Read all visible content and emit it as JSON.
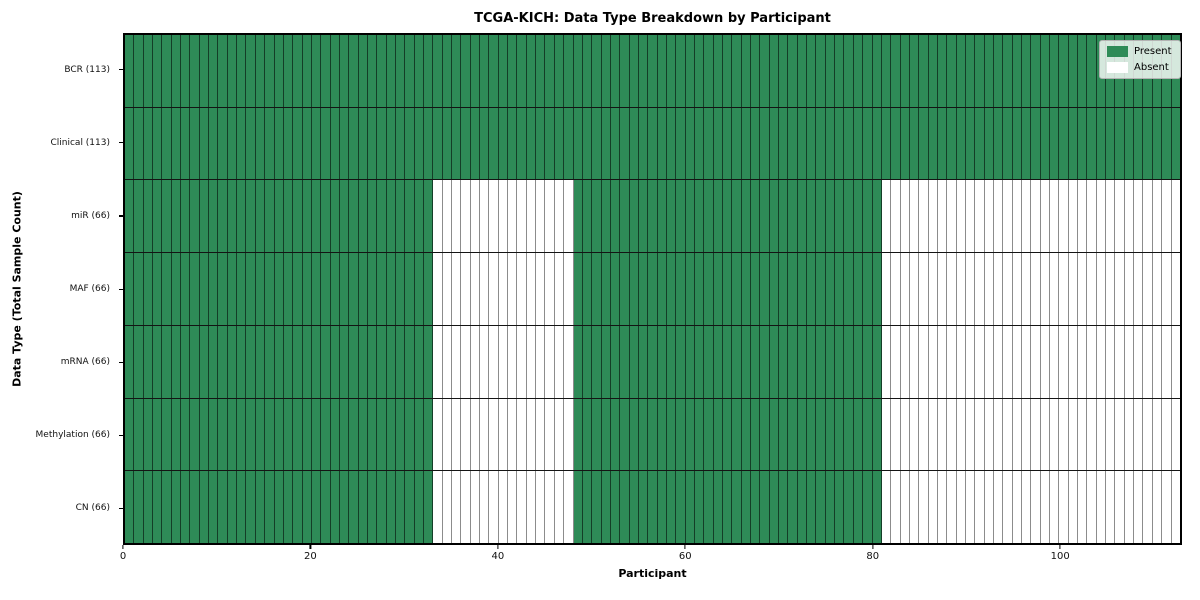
{
  "chart_data": {
    "type": "heatmap",
    "title": "TCGA-KICH: Data Type Breakdown by Participant",
    "xlabel": "Participant",
    "ylabel": "Data Type (Total Sample Count)",
    "x_ticks": [
      0,
      20,
      40,
      60,
      80,
      100
    ],
    "xlim": [
      0,
      113
    ],
    "n_participants": 113,
    "grid": "cell-borders",
    "legend_position": "upper right",
    "legend": {
      "entries": [
        {
          "label": "Present",
          "color": "#2e8b57"
        },
        {
          "label": "Absent",
          "color": "#ffffff"
        }
      ]
    },
    "colors": {
      "present": "#2e8b57",
      "absent": "#ffffff",
      "row_divider": "#141414",
      "plot_border": "#000000"
    },
    "rows": [
      {
        "label": "BCR (113)",
        "present_count": 113,
        "present_ranges": [
          [
            0,
            113
          ]
        ]
      },
      {
        "label": "Clinical (113)",
        "present_count": 113,
        "present_ranges": [
          [
            0,
            113
          ]
        ]
      },
      {
        "label": "miR (66)",
        "present_count": 66,
        "present_ranges": [
          [
            0,
            33
          ],
          [
            48,
            81
          ]
        ]
      },
      {
        "label": "MAF (66)",
        "present_count": 66,
        "present_ranges": [
          [
            0,
            33
          ],
          [
            48,
            81
          ]
        ]
      },
      {
        "label": "mRNA (66)",
        "present_count": 66,
        "present_ranges": [
          [
            0,
            33
          ],
          [
            48,
            81
          ]
        ]
      },
      {
        "label": "Methylation (66)",
        "present_count": 66,
        "present_ranges": [
          [
            0,
            33
          ],
          [
            48,
            81
          ]
        ]
      },
      {
        "label": "CN (66)",
        "present_count": 66,
        "present_ranges": [
          [
            0,
            33
          ],
          [
            48,
            81
          ]
        ]
      }
    ]
  }
}
